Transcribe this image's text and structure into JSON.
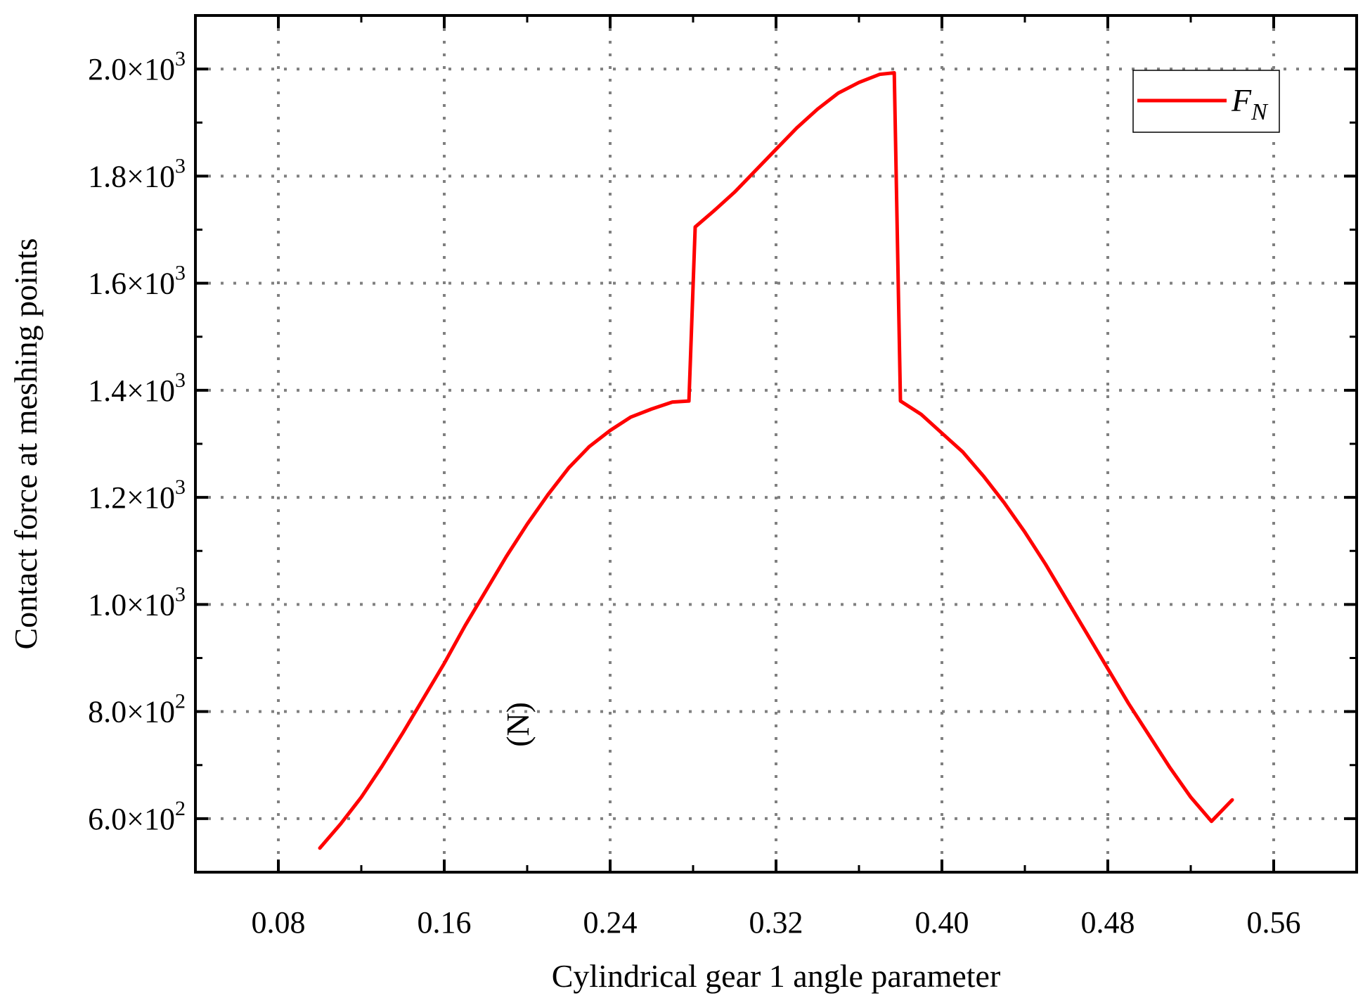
{
  "chart_data": {
    "type": "line",
    "title": "",
    "xlabel": "Cylindrical gear 1 angle parameter",
    "ylabel": "Contact force at meshing points",
    "ylabel_unit": "(N)",
    "xlim": [
      0.04,
      0.6
    ],
    "ylim": [
      500,
      2100
    ],
    "xticks": [
      0.08,
      0.16,
      0.24,
      0.32,
      0.4,
      0.48,
      0.56
    ],
    "xtick_labels": [
      "0.08",
      "0.16",
      "0.24",
      "0.32",
      "0.40",
      "0.48",
      "0.56"
    ],
    "yticks": [
      600,
      800,
      1000,
      1200,
      1400,
      1600,
      1800,
      2000
    ],
    "ytick_labels": [
      {
        "mantissa": "6.0",
        "exponent": "2"
      },
      {
        "mantissa": "8.0",
        "exponent": "2"
      },
      {
        "mantissa": "1.0",
        "exponent": "3"
      },
      {
        "mantissa": "1.2",
        "exponent": "3"
      },
      {
        "mantissa": "1.4",
        "exponent": "3"
      },
      {
        "mantissa": "1.6",
        "exponent": "3"
      },
      {
        "mantissa": "1.8",
        "exponent": "3"
      },
      {
        "mantissa": "2.0",
        "exponent": "3"
      }
    ],
    "grid": true,
    "legend": {
      "position": "top-right",
      "main": "F",
      "subscript": "N"
    },
    "series": [
      {
        "name": "F_N",
        "color": "#ff0000",
        "x": [
          0.1,
          0.11,
          0.12,
          0.13,
          0.14,
          0.15,
          0.16,
          0.17,
          0.18,
          0.19,
          0.2,
          0.21,
          0.22,
          0.23,
          0.24,
          0.25,
          0.26,
          0.27,
          0.278,
          0.281,
          0.29,
          0.3,
          0.31,
          0.32,
          0.33,
          0.34,
          0.35,
          0.36,
          0.37,
          0.377,
          0.38,
          0.39,
          0.4,
          0.41,
          0.42,
          0.43,
          0.44,
          0.45,
          0.46,
          0.47,
          0.48,
          0.49,
          0.5,
          0.51,
          0.52,
          0.53,
          0.54
        ],
        "y": [
          545,
          590,
          640,
          698,
          760,
          825,
          890,
          960,
          1025,
          1090,
          1150,
          1205,
          1255,
          1295,
          1325,
          1350,
          1365,
          1378,
          1380,
          1705,
          1735,
          1770,
          1810,
          1850,
          1890,
          1925,
          1955,
          1975,
          1990,
          1993,
          1380,
          1355,
          1320,
          1285,
          1240,
          1190,
          1135,
          1075,
          1010,
          945,
          880,
          815,
          755,
          695,
          640,
          595,
          635
        ]
      }
    ]
  }
}
